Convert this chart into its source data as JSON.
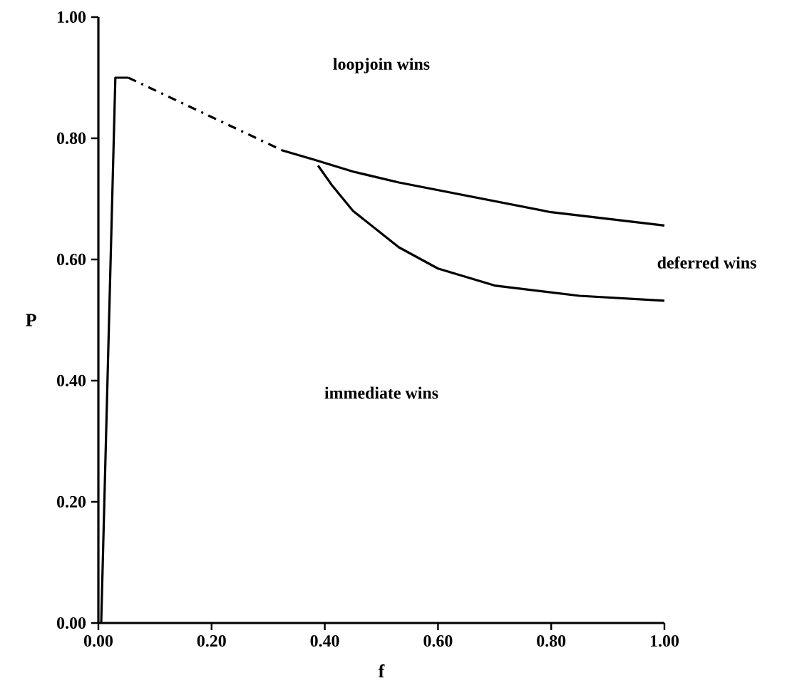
{
  "chart_data": {
    "type": "line",
    "xlabel": "f",
    "ylabel": "P",
    "xlim": [
      0,
      1
    ],
    "ylim": [
      0,
      1
    ],
    "xticks": [
      {
        "value": 0,
        "label": "0.00"
      },
      {
        "value": 0.2,
        "label": "0.20"
      },
      {
        "value": 0.4,
        "label": "0.40"
      },
      {
        "value": 0.6,
        "label": "0.60"
      },
      {
        "value": 0.8,
        "label": "0.80"
      },
      {
        "value": 1,
        "label": "1.00"
      }
    ],
    "yticks": [
      {
        "value": 0,
        "label": "0.00"
      },
      {
        "value": 0.2,
        "label": "0.20"
      },
      {
        "value": 0.4,
        "label": "0.40"
      },
      {
        "value": 0.6,
        "label": "0.60"
      },
      {
        "value": 0.8,
        "label": "0.80"
      },
      {
        "value": 1,
        "label": "1.00"
      }
    ],
    "series": [
      {
        "color": "#000000",
        "line_style": "solid",
        "x": [
          0.005,
          0.03,
          0.053
        ],
        "values": [
          0.0,
          0.9,
          0.9
        ]
      },
      {
        "color": "#000000",
        "line_style": "dashed",
        "x": [
          0.053,
          0.325
        ],
        "values": [
          0.9,
          0.78
        ]
      },
      {
        "color": "#000000",
        "line_style": "solid",
        "x": [
          0.325,
          0.38,
          0.45,
          0.531,
          0.8,
          1.0
        ],
        "values": [
          0.78,
          0.765,
          0.745,
          0.727,
          0.678,
          0.656
        ]
      },
      {
        "color": "#000000",
        "line_style": "solid",
        "x": [
          0.388,
          0.413,
          0.45,
          0.531,
          0.6,
          0.7,
          0.85,
          1.0
        ],
        "values": [
          0.755,
          0.722,
          0.68,
          0.62,
          0.585,
          0.557,
          0.54,
          0.532
        ]
      }
    ],
    "annotations": [
      "loopjoin wins",
      "deferred wins",
      "immediate wins"
    ],
    "marker": "none"
  }
}
